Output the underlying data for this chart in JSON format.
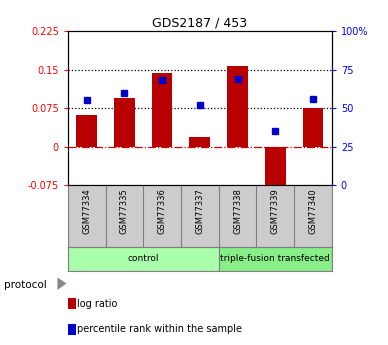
{
  "title": "GDS2187 / 453",
  "samples": [
    "GSM77334",
    "GSM77335",
    "GSM77336",
    "GSM77337",
    "GSM77338",
    "GSM77339",
    "GSM77340"
  ],
  "log_ratio": [
    0.062,
    0.095,
    0.143,
    0.018,
    0.157,
    -0.095,
    0.075
  ],
  "percentile_rank": [
    55,
    60,
    68,
    52,
    69,
    35,
    56
  ],
  "ylim_left": [
    -0.075,
    0.225
  ],
  "ylim_right": [
    0,
    100
  ],
  "yticks_left": [
    -0.075,
    0,
    0.075,
    0.15,
    0.225
  ],
  "yticks_right": [
    0,
    25,
    50,
    75,
    100
  ],
  "hlines": [
    0.075,
    0.15
  ],
  "bar_color": "#b80000",
  "dot_color": "#0000cc",
  "zero_line_color": "#cc0000",
  "groups": [
    {
      "label": "control",
      "start": 0,
      "end": 4,
      "color": "#aaffaa"
    },
    {
      "label": "triple-fusion transfected",
      "start": 4,
      "end": 7,
      "color": "#88ee88"
    }
  ],
  "protocol_label": "protocol",
  "legend_items": [
    {
      "label": "log ratio",
      "color": "#b80000"
    },
    {
      "label": "percentile rank within the sample",
      "color": "#0000cc"
    }
  ],
  "figsize": [
    3.88,
    3.45
  ],
  "dpi": 100
}
